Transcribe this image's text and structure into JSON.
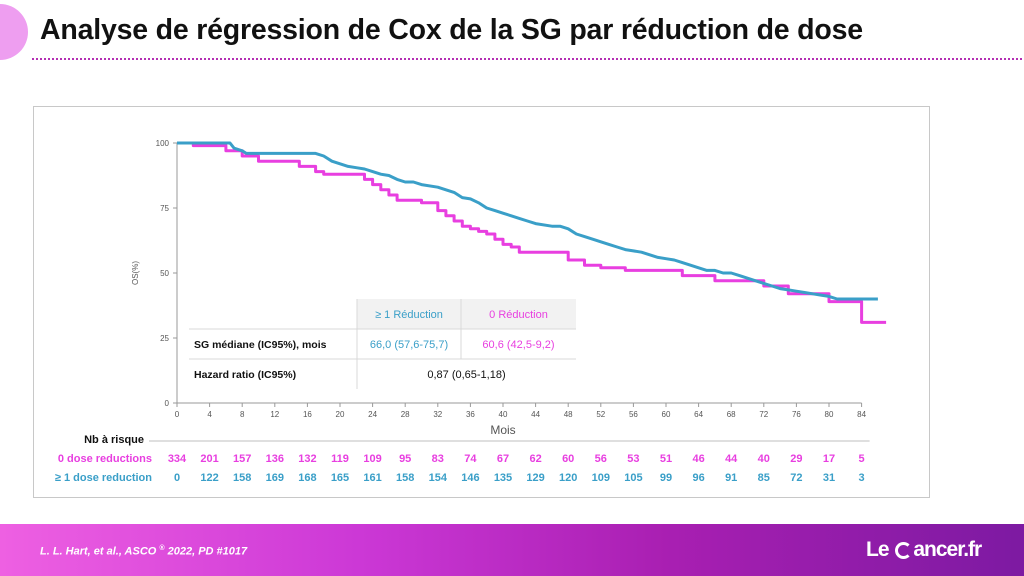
{
  "slide": {
    "title": "Analyse de régression de Cox de la SG par réduction de dose",
    "citation_main": "L. L. Hart, et al., ASCO",
    "citation_sup": "®",
    "citation_tail": " 2022, PD #1017",
    "brand": {
      "prefix": "Le ",
      "suffix": "ancer.fr"
    }
  },
  "colors": {
    "pink": "#e83fe0",
    "blue": "#3a9fc8",
    "footer": "#a91fb2"
  },
  "chart_data": {
    "type": "line",
    "title": "",
    "xlabel": "Mois",
    "ylabel": "OS(%)",
    "xlim": [
      0,
      84
    ],
    "ylim": [
      0,
      100
    ],
    "xticks": [
      0,
      4,
      8,
      12,
      16,
      20,
      24,
      28,
      32,
      36,
      40,
      44,
      48,
      52,
      56,
      60,
      64,
      68,
      72,
      76,
      80,
      84
    ],
    "yticks": [
      0,
      25,
      50,
      75,
      100
    ],
    "grid": false,
    "series": [
      {
        "name": "0 dose reductions",
        "color": "#e83fe0",
        "step": true,
        "points": [
          [
            0,
            100
          ],
          [
            2,
            100
          ],
          [
            2,
            99
          ],
          [
            6,
            99
          ],
          [
            6,
            97
          ],
          [
            8,
            97
          ],
          [
            8,
            95
          ],
          [
            10,
            95
          ],
          [
            10,
            93
          ],
          [
            15,
            93
          ],
          [
            15,
            91
          ],
          [
            17,
            91
          ],
          [
            17,
            89
          ],
          [
            18,
            89
          ],
          [
            18,
            88
          ],
          [
            23,
            88
          ],
          [
            23,
            86
          ],
          [
            24,
            86
          ],
          [
            24,
            84
          ],
          [
            25,
            84
          ],
          [
            25,
            82
          ],
          [
            26,
            82
          ],
          [
            26,
            80
          ],
          [
            27,
            80
          ],
          [
            27,
            78
          ],
          [
            30,
            78
          ],
          [
            30,
            77
          ],
          [
            32,
            77
          ],
          [
            32,
            74
          ],
          [
            33,
            74
          ],
          [
            33,
            72
          ],
          [
            34,
            72
          ],
          [
            34,
            70
          ],
          [
            35,
            70
          ],
          [
            35,
            68
          ],
          [
            36,
            68
          ],
          [
            36,
            67
          ],
          [
            37,
            67
          ],
          [
            37,
            66
          ],
          [
            38,
            66
          ],
          [
            38,
            65
          ],
          [
            39,
            65
          ],
          [
            39,
            63
          ],
          [
            40,
            63
          ],
          [
            40,
            61
          ],
          [
            41,
            61
          ],
          [
            41,
            60
          ],
          [
            42,
            60
          ],
          [
            42,
            58
          ],
          [
            48,
            58
          ],
          [
            48,
            55
          ],
          [
            50,
            55
          ],
          [
            50,
            53
          ],
          [
            52,
            53
          ],
          [
            52,
            52
          ],
          [
            55,
            52
          ],
          [
            55,
            51
          ],
          [
            62,
            51
          ],
          [
            62,
            49
          ],
          [
            66,
            49
          ],
          [
            66,
            47
          ],
          [
            72,
            47
          ],
          [
            72,
            45
          ],
          [
            75,
            45
          ],
          [
            75,
            42
          ],
          [
            80,
            42
          ],
          [
            80,
            39
          ],
          [
            84,
            39
          ],
          [
            84,
            31
          ],
          [
            87,
            31
          ]
        ]
      },
      {
        "name": "≥ 1 dose reduction",
        "color": "#3a9fc8",
        "step": false,
        "points": [
          [
            0,
            100
          ],
          [
            3,
            100
          ],
          [
            6.5,
            100
          ],
          [
            7,
            98
          ],
          [
            8,
            97
          ],
          [
            8.5,
            96
          ],
          [
            12,
            96
          ],
          [
            17,
            96
          ],
          [
            18,
            95
          ],
          [
            19,
            93
          ],
          [
            20,
            92
          ],
          [
            21,
            91
          ],
          [
            22,
            90.5
          ],
          [
            23,
            90
          ],
          [
            24,
            89
          ],
          [
            25,
            88
          ],
          [
            26,
            87.5
          ],
          [
            27,
            86
          ],
          [
            28,
            85
          ],
          [
            29,
            85
          ],
          [
            30,
            84
          ],
          [
            32,
            83
          ],
          [
            33,
            82
          ],
          [
            34,
            81
          ],
          [
            35,
            79
          ],
          [
            36,
            78.5
          ],
          [
            37,
            77
          ],
          [
            38,
            75
          ],
          [
            39,
            74
          ],
          [
            40,
            73
          ],
          [
            41,
            72
          ],
          [
            42,
            71
          ],
          [
            43,
            70
          ],
          [
            44,
            69
          ],
          [
            46,
            68
          ],
          [
            47,
            68
          ],
          [
            48,
            67
          ],
          [
            49,
            65
          ],
          [
            50,
            64
          ],
          [
            51,
            63
          ],
          [
            52,
            62
          ],
          [
            53,
            61
          ],
          [
            54,
            60
          ],
          [
            55,
            59
          ],
          [
            56,
            58.5
          ],
          [
            57,
            58
          ],
          [
            58,
            57
          ],
          [
            59,
            56
          ],
          [
            60,
            55.5
          ],
          [
            61,
            55
          ],
          [
            62,
            54
          ],
          [
            63,
            53
          ],
          [
            64,
            52
          ],
          [
            65,
            51
          ],
          [
            66,
            51
          ],
          [
            67,
            50
          ],
          [
            68,
            50
          ],
          [
            69,
            49
          ],
          [
            70,
            48
          ],
          [
            71,
            47
          ],
          [
            72,
            46
          ],
          [
            73,
            45
          ],
          [
            74,
            44
          ],
          [
            75,
            43.5
          ],
          [
            76,
            43
          ],
          [
            77,
            42.5
          ],
          [
            78,
            42
          ],
          [
            79,
            41.5
          ],
          [
            80,
            41
          ],
          [
            81,
            40
          ],
          [
            83,
            40
          ],
          [
            86,
            40
          ]
        ]
      }
    ],
    "table": {
      "col_headers": [
        "≥ 1 Réduction",
        "0 Réduction"
      ],
      "rows": [
        {
          "label": "SG médiane (IC95%), mois",
          "values": [
            "66,0 (57,6-75,7)",
            "60,6 (42,5-9,2)"
          ]
        },
        {
          "label": "Hazard ratio (IC95%)",
          "value": "0,87 (0,65-1,18)"
        }
      ]
    },
    "at_risk": {
      "title": "Nb à risque",
      "times": [
        0,
        4,
        8,
        12,
        16,
        20,
        24,
        28,
        32,
        36,
        40,
        44,
        48,
        52,
        56,
        60,
        64,
        68,
        72,
        76,
        80,
        84
      ],
      "rows": [
        {
          "label": "0 dose reductions",
          "color": "#e83fe0",
          "values": [
            334,
            201,
            157,
            136,
            132,
            119,
            109,
            95,
            83,
            74,
            67,
            62,
            60,
            56,
            53,
            51,
            46,
            44,
            40,
            29,
            17,
            5
          ]
        },
        {
          "label": "≥ 1 dose reduction",
          "color": "#3a9fc8",
          "values": [
            0,
            122,
            158,
            169,
            168,
            165,
            161,
            158,
            154,
            146,
            135,
            129,
            120,
            109,
            105,
            99,
            96,
            91,
            85,
            72,
            31,
            3
          ]
        }
      ]
    }
  }
}
